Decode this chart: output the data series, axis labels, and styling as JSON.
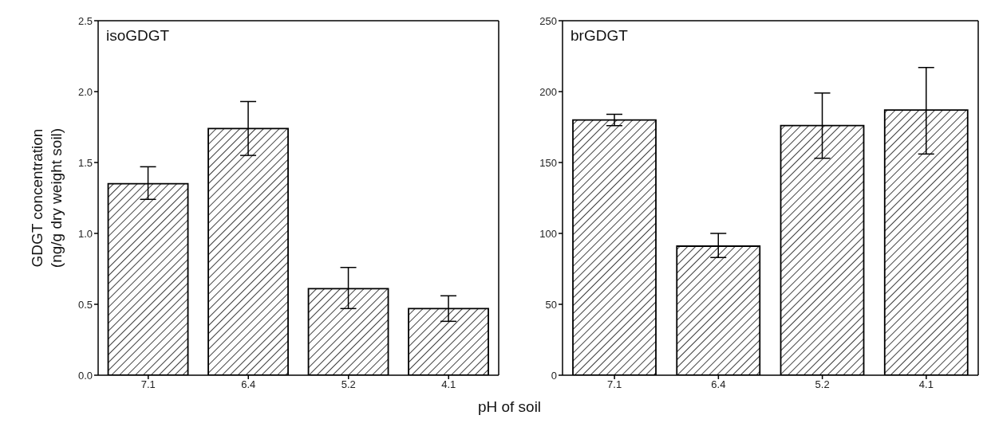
{
  "chart_data": [
    {
      "type": "bar",
      "title": "isoGDGT",
      "xlabel": "pH of soil",
      "ylabel": "GDGT concentration\n(ng/g dry weight soil)",
      "categories": [
        "7.1",
        "6.4",
        "5.2",
        "4.1"
      ],
      "values": [
        1.35,
        1.74,
        0.61,
        0.47
      ],
      "errors": [
        [
          1.24,
          1.47
        ],
        [
          1.55,
          1.93
        ],
        [
          0.47,
          0.76
        ],
        [
          0.38,
          0.56
        ]
      ],
      "color": "#000000",
      "ylim": [
        0,
        2.5
      ],
      "yticks": [
        {
          "value": 0,
          "label": "0.0"
        },
        0.5,
        {
          "value": 1,
          "label": "1.0"
        },
        1.5,
        {
          "value": 2,
          "label": "2.0"
        },
        2.5
      ],
      "grid": false,
      "legend": false
    },
    {
      "type": "bar",
      "title": "brGDGT",
      "categories": [
        "7.1",
        "6.4",
        "5.2",
        "4.1"
      ],
      "values": [
        180,
        91,
        176,
        187
      ],
      "errors": [
        [
          176,
          184
        ],
        [
          83,
          100
        ],
        [
          153,
          199
        ],
        [
          156,
          217
        ]
      ],
      "color": "#000000",
      "ylim": [
        0,
        250
      ],
      "yticks": [
        0,
        50,
        100,
        150,
        200,
        250
      ],
      "grid": false,
      "legend": false
    }
  ]
}
